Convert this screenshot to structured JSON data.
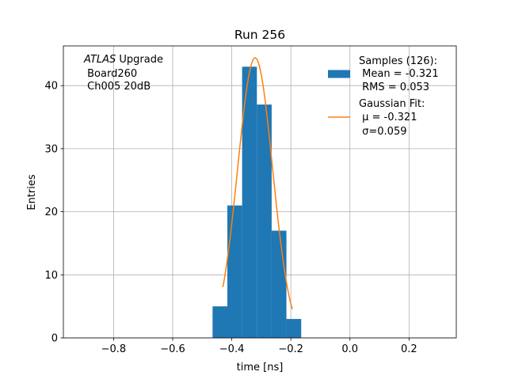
{
  "chart_data": {
    "type": "bar",
    "title": "Run 256",
    "xlabel": "time [ns]",
    "ylabel": "Entries",
    "xlim": [
      -0.97,
      0.36
    ],
    "ylim": [
      0,
      46.3
    ],
    "xticks": [
      -0.8,
      -0.6,
      -0.4,
      -0.2,
      0.0,
      0.2
    ],
    "xtick_labels": [
      "−0.8",
      "−0.6",
      "−0.4",
      "−0.2",
      "0.0",
      "0.2"
    ],
    "yticks": [
      0,
      10,
      20,
      30,
      40
    ],
    "ytick_labels": [
      "0",
      "10",
      "20",
      "30",
      "40"
    ],
    "grid": true,
    "legend_position": "top-right",
    "histogram": {
      "name": "Samples (126):",
      "color": "#1f77b4",
      "bin_edges": [
        -0.465,
        -0.415,
        -0.365,
        -0.315,
        -0.265,
        -0.215,
        -0.165
      ],
      "counts": [
        5,
        21,
        43,
        37,
        17,
        3
      ]
    },
    "fit": {
      "name": "Gaussian Fit:",
      "color": "#ff7f0e",
      "mu": -0.321,
      "sigma": 0.059,
      "amplitude": 44.4,
      "x_range": [
        -0.43,
        -0.195
      ]
    },
    "legend": {
      "samples_lines": [
        "Samples (126):",
        " Mean = -0.321",
        " RMS = 0.053"
      ],
      "fit_line1": "Gaussian Fit:",
      "fit_mu": " μ = -0.321",
      "fit_sigma": " σ=0.059"
    },
    "annotation": {
      "italic": "ATLAS",
      "rest": " Upgrade",
      "line2": " Board260",
      "line3": " Ch005 20dB"
    }
  }
}
